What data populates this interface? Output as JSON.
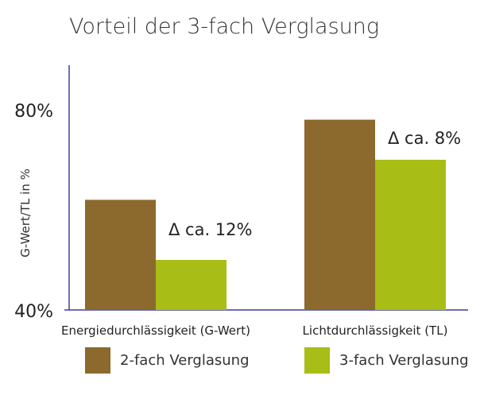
{
  "chart_data": {
    "type": "bar",
    "title": "Vorteil der 3-fach Verglasung",
    "ylabel": "G-Wert/TL in %",
    "xlabel": "",
    "ylim": [
      40,
      87
    ],
    "yticks": [
      {
        "value": 40,
        "label": "40%"
      },
      {
        "value": 80,
        "label": "80%"
      }
    ],
    "categories": [
      "Energiedurchlässigkeit (G-Wert)",
      "Lichtdurchlässigkeit (TL)"
    ],
    "series": [
      {
        "name": "2-fach Verglasung",
        "color": "#8c692c",
        "values": [
          62,
          78
        ]
      },
      {
        "name": "3-fach Verglasung",
        "color": "#a8be16",
        "values": [
          50,
          70
        ]
      }
    ],
    "annotations": [
      {
        "category_index": 0,
        "text": "Δ ca. 12%"
      },
      {
        "category_index": 1,
        "text": "Δ ca. 8%"
      }
    ],
    "axis_color": "#3f3f9a",
    "grid": false,
    "legend_position": "bottom"
  }
}
